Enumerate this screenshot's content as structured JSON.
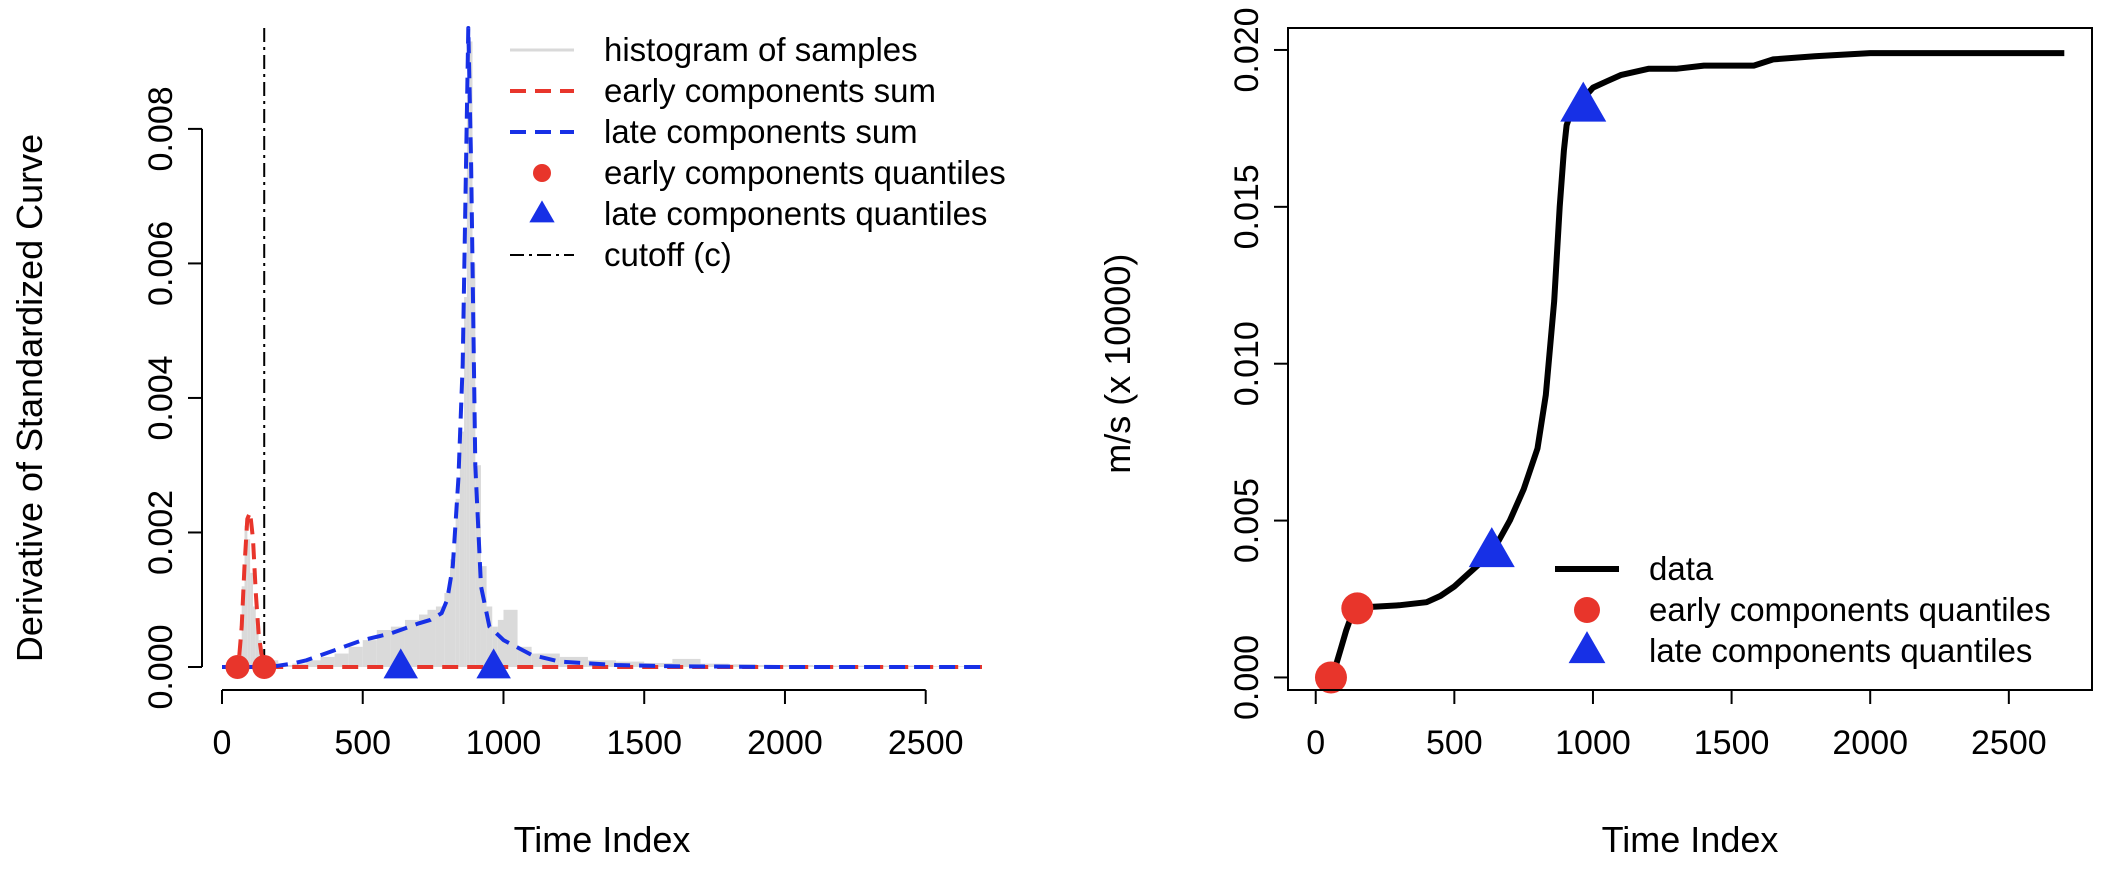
{
  "chart_data": [
    {
      "type": "line",
      "title": "",
      "xlabel": "Time Index",
      "ylabel": "Derivative of Standardized Curve",
      "xlim": [
        0,
        2700
      ],
      "ylim": [
        0,
        0.0095
      ],
      "xticks": [
        0,
        500,
        1000,
        1500,
        2000,
        2500
      ],
      "xtick_labels": [
        "0",
        "500",
        "1000",
        "1500",
        "2000",
        "2500"
      ],
      "yticks": [
        0,
        0.002,
        0.004,
        0.006,
        0.008
      ],
      "ytick_labels": [
        "0.000",
        "0.002",
        "0.004",
        "0.006",
        "0.008"
      ],
      "cutoff": 150,
      "legend_position": "top-right",
      "legend": [
        {
          "label": "histogram of samples",
          "kind": "hist",
          "color": "#d9d9d9"
        },
        {
          "label": "early components sum",
          "kind": "dash",
          "color": "#e8352b"
        },
        {
          "label": "late components sum",
          "kind": "dash",
          "color": "#1730e6"
        },
        {
          "label": "early components quantiles",
          "kind": "circle",
          "color": "#e8352b"
        },
        {
          "label": "late components quantiles",
          "kind": "triangle",
          "color": "#1730e6"
        },
        {
          "label": "cutoff (c)",
          "kind": "dashdot",
          "color": "#000000"
        }
      ],
      "histogram": {
        "x": [
          60,
          70,
          80,
          90,
          100,
          110,
          120,
          130,
          140,
          150,
          200,
          250,
          300,
          350,
          400,
          450,
          500,
          550,
          600,
          650,
          700,
          730,
          760,
          790,
          810,
          830,
          845,
          860,
          870,
          880,
          890,
          900,
          920,
          940,
          960,
          980,
          1000,
          1050,
          1100,
          1200,
          1300,
          1400,
          1500,
          1600,
          1700,
          1800,
          1900,
          2000,
          2100,
          2200,
          2300,
          2400,
          2500,
          2600
        ],
        "y": [
          0.0002,
          0.0012,
          0.0021,
          0.0019,
          0.0014,
          0.0009,
          0.0006,
          0.0004,
          0.0002,
          0.0001,
          3e-05,
          5e-05,
          0.0001,
          0.00015,
          0.0002,
          0.0003,
          0.0004,
          0.00055,
          0.0006,
          0.0007,
          0.00078,
          0.00085,
          0.0009,
          0.0011,
          0.0016,
          0.0025,
          0.0035,
          0.0055,
          0.0085,
          0.0093,
          0.006,
          0.003,
          0.0015,
          0.0009,
          0.0006,
          0.0007,
          0.00085,
          0.0003,
          0.0002,
          0.00015,
          0.0001,
          8e-05,
          6e-05,
          0.00012,
          5e-05,
          4e-05,
          3e-05,
          3e-05,
          2e-05,
          2e-05,
          2e-05,
          2e-05,
          1e-05,
          1e-05
        ]
      },
      "series": [
        {
          "name": "early components sum",
          "color": "#e8352b",
          "x": [
            0,
            40,
            60,
            70,
            80,
            90,
            100,
            110,
            120,
            130,
            140,
            150,
            170,
            200,
            2700
          ],
          "y": [
            0,
            0,
            0.0001,
            0.0006,
            0.0015,
            0.0022,
            0.0023,
            0.0019,
            0.0011,
            0.0005,
            0.0002,
            5e-05,
            0,
            0,
            0
          ]
        },
        {
          "name": "late components sum",
          "color": "#1730e6",
          "x": [
            0,
            150,
            200,
            250,
            300,
            400,
            500,
            600,
            700,
            740,
            780,
            800,
            820,
            840,
            855,
            865,
            875,
            885,
            900,
            920,
            950,
            1000,
            1100,
            1200,
            1400,
            1600,
            2000,
            2700
          ],
          "y": [
            0,
            0,
            2e-05,
            5e-05,
            0.0001,
            0.00025,
            0.0004,
            0.0005,
            0.00065,
            0.0007,
            0.0008,
            0.001,
            0.0015,
            0.0028,
            0.0045,
            0.007,
            0.0095,
            0.0075,
            0.003,
            0.0012,
            0.0006,
            0.0004,
            0.00018,
            8e-05,
            3e-05,
            1e-05,
            0,
            0
          ]
        }
      ],
      "early_quantiles": {
        "x": [
          55,
          150
        ],
        "y": [
          0,
          0
        ]
      },
      "late_quantiles": {
        "x": [
          635,
          965
        ],
        "y": [
          0,
          0
        ]
      }
    },
    {
      "type": "line",
      "title": "",
      "xlabel": "Time Index",
      "ylabel": "m/s (x 10000)",
      "xlim": [
        -100,
        2800
      ],
      "ylim": [
        -0.0004,
        0.0207
      ],
      "xticks": [
        0,
        500,
        1000,
        1500,
        2000,
        2500
      ],
      "xtick_labels": [
        "0",
        "500",
        "1000",
        "1500",
        "2000",
        "2500"
      ],
      "yticks": [
        0,
        0.005,
        0.01,
        0.015,
        0.02
      ],
      "ytick_labels": [
        "0.000",
        "0.005",
        "0.010",
        "0.015",
        "0.020"
      ],
      "legend_position": "bottom-right",
      "legend": [
        {
          "label": "data",
          "kind": "line",
          "color": "#000000"
        },
        {
          "label": "early components quantiles",
          "kind": "circle",
          "color": "#e8352b"
        },
        {
          "label": "late components quantiles",
          "kind": "triangle",
          "color": "#1730e6"
        }
      ],
      "series": [
        {
          "name": "data",
          "color": "#000000",
          "x": [
            55,
            70,
            90,
            110,
            130,
            150,
            200,
            300,
            400,
            450,
            500,
            550,
            600,
            650,
            700,
            750,
            800,
            830,
            860,
            880,
            895,
            905,
            920,
            940,
            960,
            980,
            1000,
            1050,
            1100,
            1200,
            1300,
            1400,
            1500,
            1580,
            1650,
            1800,
            2000,
            2200,
            2500,
            2700
          ],
          "y": [
            0,
            0.0003,
            0.0009,
            0.0015,
            0.002,
            0.0022,
            0.00225,
            0.0023,
            0.0024,
            0.0026,
            0.0029,
            0.0033,
            0.0037,
            0.0042,
            0.005,
            0.006,
            0.0073,
            0.009,
            0.012,
            0.015,
            0.0168,
            0.0176,
            0.018,
            0.0182,
            0.0184,
            0.0186,
            0.0188,
            0.019,
            0.0192,
            0.0194,
            0.0194,
            0.0195,
            0.0195,
            0.0195,
            0.0197,
            0.0198,
            0.0199,
            0.0199,
            0.0199,
            0.0199
          ]
        }
      ],
      "early_quantiles": {
        "x": [
          55,
          150
        ],
        "y": [
          0,
          0.0022
        ]
      },
      "late_quantiles": {
        "x": [
          635,
          965
        ],
        "y": [
          0.004,
          0.0182
        ]
      }
    }
  ]
}
